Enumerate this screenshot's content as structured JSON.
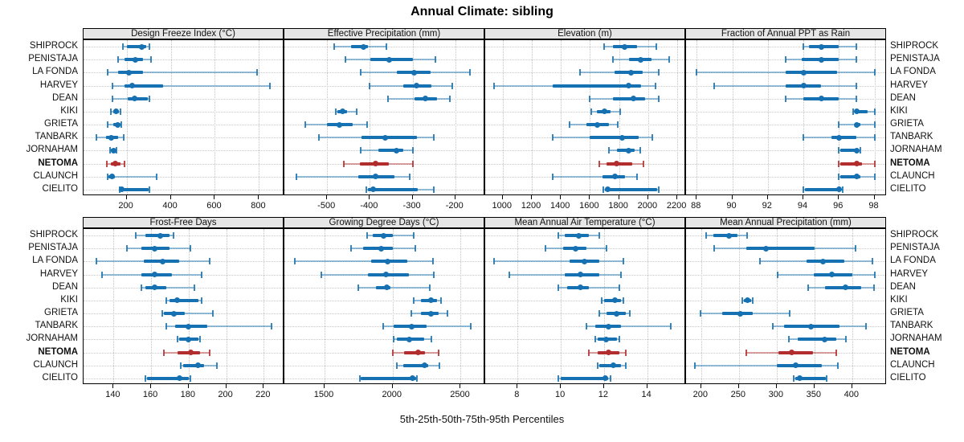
{
  "title": "Annual Climate: sibling",
  "caption": "5th-25th-50th-75th-95th Percentiles",
  "colors": {
    "series": "#1671b2",
    "highlight": "#b22e2e",
    "strip_bg": "#e6e6e6",
    "grid": "#c8c8c8",
    "border": "#000000"
  },
  "stations": [
    "SHIPROCK",
    "PENISTAJA",
    "LA FONDA",
    "HARVEY",
    "DEAN",
    "KIKI",
    "GRIETA",
    "TANBARK",
    "JORNAHAM",
    "NETOMA",
    "CLAUNCH",
    "CIELITO"
  ],
  "highlight_station": "NETOMA",
  "chart_data": {
    "type": "dotplot-percentiles",
    "percentiles": [
      5,
      25,
      50,
      75,
      95
    ],
    "layout": {
      "rows": 2,
      "cols": 4,
      "legend": "none",
      "grid": "dotted"
    },
    "panels": [
      {
        "title": "Design Freeze Index (°C)",
        "domain": [
          5,
          915
        ],
        "ticks": [
          200,
          400,
          600,
          800
        ],
        "series": [
          [
            185,
            200,
            270,
            290,
            305
          ],
          [
            160,
            190,
            240,
            275,
            310
          ],
          [
            115,
            160,
            212,
            275,
            790
          ],
          [
            135,
            190,
            225,
            365,
            850
          ],
          [
            135,
            205,
            237,
            295,
            305
          ],
          [
            130,
            140,
            153,
            165,
            172
          ],
          [
            113,
            140,
            158,
            172,
            176
          ],
          [
            62,
            107,
            131,
            160,
            186
          ],
          [
            125,
            129,
            140,
            149,
            153
          ],
          [
            111,
            129,
            149,
            171,
            189
          ],
          [
            113,
            119,
            134,
            147,
            336
          ],
          [
            170,
            173,
            178,
            300,
            305
          ]
        ]
      },
      {
        "title": "Effective Precipitation (mm)",
        "domain": [
          -600,
          -130
        ],
        "ticks": [
          -500,
          -400,
          -300,
          -200
        ],
        "series": [
          [
            -483,
            -444,
            -415,
            -404,
            -361
          ],
          [
            -457,
            -398,
            -355,
            -299,
            -247
          ],
          [
            -421,
            -336,
            -296,
            -258,
            -165
          ],
          [
            -400,
            -321,
            -291,
            -256,
            -208
          ],
          [
            -358,
            -296,
            -270,
            -242,
            -212
          ],
          [
            -480,
            -475,
            -463,
            -454,
            -430
          ],
          [
            -551,
            -500,
            -472,
            -441,
            -406
          ],
          [
            -519,
            -420,
            -364,
            -290,
            -250
          ],
          [
            -421,
            -380,
            -338,
            -321,
            -299
          ],
          [
            -460,
            -424,
            -387,
            -355,
            -300
          ],
          [
            -572,
            -427,
            -386,
            -343,
            -307
          ],
          [
            -408,
            -404,
            -393,
            -287,
            -250
          ]
        ]
      },
      {
        "title": "Elevation (m)",
        "domain": [
          880,
          2260
        ],
        "ticks": [
          1000,
          1200,
          1400,
          1600,
          1800,
          2000,
          2200
        ],
        "series": [
          [
            1695,
            1760,
            1840,
            1925,
            2055
          ],
          [
            1755,
            1870,
            1950,
            2025,
            2145
          ],
          [
            1530,
            1770,
            1880,
            1960,
            2070
          ],
          [
            940,
            1345,
            1865,
            1950,
            2050
          ],
          [
            1600,
            1760,
            1900,
            1980,
            2075
          ],
          [
            1610,
            1650,
            1700,
            1740,
            1805
          ],
          [
            1460,
            1575,
            1650,
            1730,
            1790
          ],
          [
            1345,
            1595,
            1820,
            1935,
            2030
          ],
          [
            1730,
            1785,
            1865,
            1905,
            1945
          ],
          [
            1665,
            1715,
            1785,
            1890,
            1965
          ],
          [
            1345,
            1685,
            1770,
            1840,
            1925
          ],
          [
            1690,
            1700,
            1722,
            2060,
            2072
          ]
        ]
      },
      {
        "title": "Fraction of Annual PPT as Rain",
        "domain": [
          87.4,
          98.7
        ],
        "ticks": [
          88,
          90,
          92,
          94,
          96,
          98
        ],
        "series": [
          [
            94.0,
            94.3,
            95.0,
            96.0,
            97.0
          ],
          [
            93.0,
            93.9,
            95.0,
            96.0,
            97.0
          ],
          [
            88.0,
            93.0,
            94.0,
            95.9,
            98.0
          ],
          [
            89.0,
            93.0,
            94.0,
            95.0,
            97.0
          ],
          [
            93.0,
            94.0,
            95.0,
            96.0,
            97.0
          ],
          [
            96.8,
            96.9,
            97.0,
            97.6,
            98.0
          ],
          [
            96.0,
            96.9,
            97.0,
            97.2,
            98.0
          ],
          [
            94.0,
            95.6,
            96.0,
            97.0,
            98.0
          ],
          [
            96.0,
            96.1,
            97.0,
            97.1,
            97.2
          ],
          [
            96.0,
            96.1,
            97.0,
            97.3,
            98.0
          ],
          [
            96.0,
            96.1,
            97.0,
            97.2,
            98.0
          ],
          [
            94.0,
            94.1,
            96.0,
            96.1,
            96.2
          ]
        ]
      },
      {
        "title": "Frost-Free Days",
        "domain": [
          124,
          231
        ],
        "ticks": [
          140,
          160,
          180,
          200,
          220
        ],
        "series": [
          [
            152,
            157,
            165,
            170,
            172
          ],
          [
            147,
            155,
            162,
            170,
            181
          ],
          [
            131,
            156,
            166,
            175,
            191
          ],
          [
            134,
            155,
            162,
            171,
            187
          ],
          [
            155,
            157,
            162,
            168,
            183
          ],
          [
            168,
            170,
            174,
            185,
            187
          ],
          [
            166,
            167,
            172,
            178,
            193
          ],
          [
            168,
            173,
            180,
            190,
            224
          ],
          [
            174,
            175,
            180,
            185,
            186
          ],
          [
            167,
            174,
            181,
            186,
            191
          ],
          [
            176,
            177,
            185,
            188,
            195
          ],
          [
            157,
            158,
            175,
            180,
            181
          ]
        ]
      },
      {
        "title": "Growing Degree Days (°C)",
        "domain": [
          1205,
          2680
        ],
        "ticks": [
          1500,
          2000,
          2500
        ],
        "series": [
          [
            1810,
            1855,
            1935,
            2000,
            2155
          ],
          [
            1695,
            1785,
            1915,
            2000,
            2165
          ],
          [
            1280,
            1845,
            1965,
            2105,
            2295
          ],
          [
            1475,
            1820,
            1950,
            2120,
            2305
          ],
          [
            1750,
            1875,
            1955,
            1985,
            2275
          ],
          [
            2155,
            2210,
            2280,
            2325,
            2355
          ],
          [
            2135,
            2210,
            2280,
            2335,
            2400
          ],
          [
            1930,
            2010,
            2140,
            2250,
            2575
          ],
          [
            2010,
            2030,
            2125,
            2230,
            2285
          ],
          [
            2000,
            2085,
            2185,
            2235,
            2335
          ],
          [
            2030,
            2080,
            2235,
            2260,
            2345
          ],
          [
            1760,
            1765,
            2145,
            2170,
            2180
          ]
        ]
      },
      {
        "title": "Mean Annual Air Temperature (°C)",
        "domain": [
          6.5,
          15.8
        ],
        "ticks": [
          8,
          10,
          12,
          14
        ],
        "series": [
          [
            9.9,
            10.2,
            10.85,
            11.3,
            11.8
          ],
          [
            9.3,
            10.1,
            10.7,
            11.2,
            12.1
          ],
          [
            6.9,
            10.4,
            11.1,
            11.8,
            12.9
          ],
          [
            7.6,
            10.2,
            10.9,
            11.8,
            12.8
          ],
          [
            9.9,
            10.3,
            10.9,
            11.3,
            12.7
          ],
          [
            11.9,
            12.0,
            12.5,
            12.8,
            12.9
          ],
          [
            11.8,
            12.1,
            12.6,
            13.0,
            13.2
          ],
          [
            11.2,
            11.6,
            12.2,
            12.8,
            15.1
          ],
          [
            11.6,
            11.7,
            12.1,
            12.6,
            12.7
          ],
          [
            11.3,
            11.7,
            12.2,
            12.7,
            13.0
          ],
          [
            11.7,
            11.8,
            12.45,
            12.8,
            13.0
          ],
          [
            9.9,
            10.0,
            12.05,
            12.2,
            12.3
          ]
        ]
      },
      {
        "title": "Mean Annual Precipitation (mm)",
        "domain": [
          180,
          446
        ],
        "ticks": [
          200,
          250,
          300,
          350,
          400
        ],
        "series": [
          [
            207,
            216,
            237,
            248,
            261
          ],
          [
            217,
            260,
            286,
            350,
            405
          ],
          [
            278,
            340,
            361,
            390,
            427
          ],
          [
            301,
            349,
            373,
            400,
            430
          ],
          [
            342,
            364,
            391,
            412,
            429
          ],
          [
            255,
            257,
            261,
            266,
            268
          ],
          [
            199,
            228,
            252,
            268,
            317
          ],
          [
            295,
            310,
            345,
            383,
            418
          ],
          [
            316,
            328,
            364,
            379,
            392
          ],
          [
            260,
            302,
            320,
            348,
            379
          ],
          [
            192,
            300,
            325,
            360,
            381
          ],
          [
            323,
            325,
            331,
            365,
            366
          ]
        ]
      }
    ]
  }
}
